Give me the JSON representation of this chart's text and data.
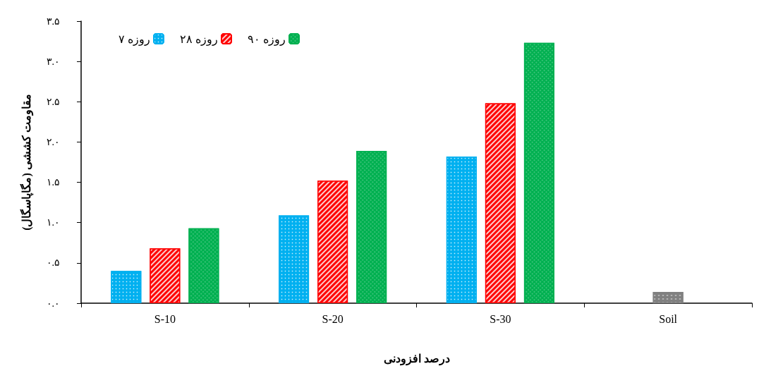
{
  "chart_data": {
    "type": "bar",
    "xlabel": "درصد افزودنی",
    "ylabel": "مقاومت کششی (مگاپاسگال)",
    "categories": [
      "S-10",
      "S-20",
      "S-30",
      "Soil"
    ],
    "series": [
      {
        "name": "۷ روزه",
        "color": "#00b0f0",
        "values": [
          0.4,
          1.09,
          1.82,
          null
        ]
      },
      {
        "name": "۲۸ روزه",
        "color": "#ff0000",
        "values": [
          0.68,
          1.52,
          2.48,
          null
        ]
      },
      {
        "name": "۹۰ روزه",
        "color": "#00b050",
        "values": [
          0.93,
          1.89,
          3.23,
          null
        ]
      },
      {
        "color": "#808080",
        "values": [
          null,
          null,
          null,
          0.14
        ]
      }
    ],
    "ylim": [
      0,
      3.5
    ],
    "yticks": [
      {
        "value": 0,
        "label": "۰.۰"
      },
      {
        "value": 0.5,
        "label": "۰.۵"
      },
      {
        "value": 1,
        "label": "۱.۰"
      },
      {
        "value": 1.5,
        "label": "۱.۵"
      },
      {
        "value": 2,
        "label": "۲.۰"
      },
      {
        "value": 2.5,
        "label": "۲.۵"
      },
      {
        "value": 3,
        "label": "۳.۰"
      },
      {
        "value": 3.5,
        "label": "۳.۵"
      }
    ],
    "legend": "top left",
    "grid": false
  }
}
